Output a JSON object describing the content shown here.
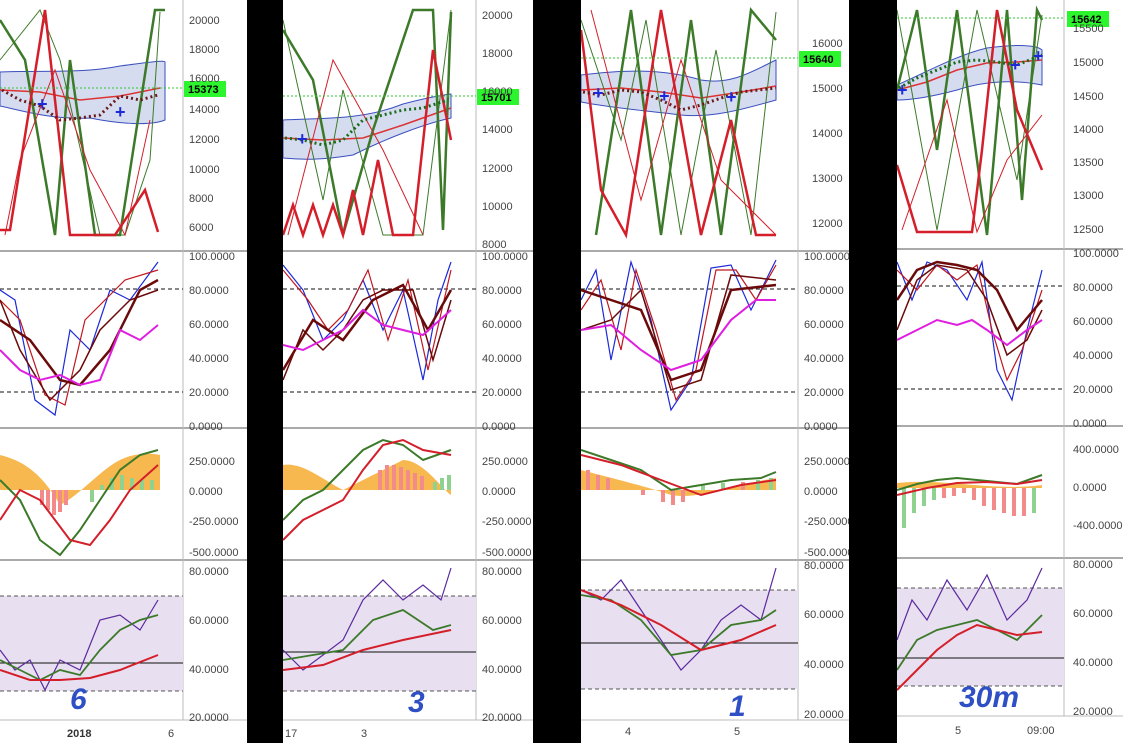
{
  "chart_data": [
    {
      "type": "line",
      "title": "",
      "timeframe_note": "6",
      "price_current": "15373",
      "x_ticks": [
        "2018",
        "6"
      ],
      "price_axis": [
        "20000",
        "18000",
        "16000",
        "14000",
        "12000",
        "10000",
        "8000",
        "6000"
      ],
      "stoch_axis": [
        "100.0000",
        "80.0000",
        "60.0000",
        "40.0000",
        "20.0000",
        "0.0000"
      ],
      "macd_axis": [
        "250.0000",
        "0.0000",
        "-250.0000",
        "-500.0000"
      ],
      "rsi_axis": [
        "80.0000",
        "60.0000",
        "40.0000",
        "20.0000"
      ],
      "price_range": [
        5000,
        21000
      ],
      "stoch_levels": [
        80,
        20
      ],
      "rsi_band": [
        30,
        70
      ]
    },
    {
      "type": "line",
      "title": "",
      "timeframe_note": "3",
      "price_current": "15701",
      "x_ticks": [
        "17",
        "3"
      ],
      "price_axis": [
        "20000",
        "18000",
        "16000",
        "14000",
        "12000",
        "10000",
        "8000"
      ],
      "stoch_axis": [
        "100.0000",
        "80.0000",
        "60.0000",
        "40.0000",
        "20.0000",
        "0.0000"
      ],
      "macd_axis": [
        "250.0000",
        "0.0000",
        "-250.0000",
        "-500.0000"
      ],
      "rsi_axis": [
        "80.0000",
        "60.0000",
        "40.0000",
        "20.0000"
      ],
      "price_range": [
        7500,
        21000
      ],
      "stoch_levels": [
        80,
        20
      ],
      "rsi_band": [
        30,
        70
      ]
    },
    {
      "type": "line",
      "title": "",
      "timeframe_note": "1",
      "price_current": "15640",
      "x_ticks": [
        "4",
        "5"
      ],
      "price_axis": [
        "16000",
        "15000",
        "14000",
        "13000",
        "12000"
      ],
      "stoch_axis": [
        "100.0000",
        "80.0000",
        "60.0000",
        "40.0000",
        "20.0000",
        "0.0000"
      ],
      "macd_axis": [
        "250.0000",
        "0.0000",
        "-250.0000",
        "-500.0000"
      ],
      "rsi_axis": [
        "80.0000",
        "60.0000",
        "40.0000",
        "20.0000"
      ],
      "price_range": [
        11500,
        16900
      ],
      "stoch_levels": [
        80,
        20
      ],
      "rsi_band": [
        30,
        70
      ]
    },
    {
      "type": "line",
      "title": "",
      "timeframe_note": "30m",
      "price_current": "15642",
      "x_ticks": [
        "5",
        "09:00"
      ],
      "price_axis": [
        "15500",
        "15000",
        "14500",
        "14000",
        "13500",
        "13000",
        "12500"
      ],
      "stoch_axis": [
        "100.0000",
        "80.0000",
        "60.0000",
        "40.0000",
        "20.0000",
        "0.0000"
      ],
      "macd_axis": [
        "400.0000",
        "0.0000",
        "-400.0000"
      ],
      "rsi_axis": [
        "80.0000",
        "60.0000",
        "40.0000",
        "20.0000"
      ],
      "price_range": [
        12250,
        15800
      ],
      "stoch_levels": [
        80,
        20
      ],
      "rsi_band": [
        30,
        70
      ]
    }
  ]
}
